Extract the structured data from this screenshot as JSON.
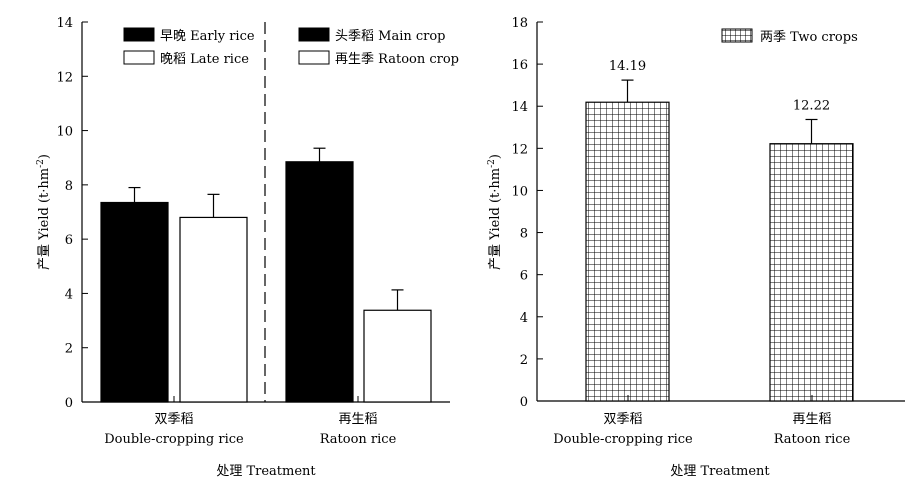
{
  "chart_data": [
    {
      "type": "bar",
      "xlabel": "处理 Treatment",
      "ylabel_prefix": "产量 Yield (t·hm",
      "ylabel_sup": "-2",
      "ylabel_suffix": ")",
      "ylim": [
        0,
        14
      ],
      "yticks": [
        "0",
        "2",
        "4",
        "6",
        "8",
        "10",
        "12",
        "14"
      ],
      "grid": false,
      "legend_position": "top",
      "groups": [
        {
          "label_cn": "双季稻",
          "label_en": "Double-cropping rice"
        },
        {
          "label_cn": "再生稻",
          "label_en": "Ratoon rice"
        }
      ],
      "series": [
        {
          "name": "早晚 Early rice",
          "fill": "#000000",
          "group": 0,
          "value": 7.35,
          "error": 0.55
        },
        {
          "name": "晚稻 Late rice",
          "fill": "#ffffff",
          "group": 0,
          "value": 6.8,
          "error": 0.85
        },
        {
          "name": "头季稻 Main crop",
          "fill": "#000000",
          "group": 1,
          "value": 8.85,
          "error": 0.5
        },
        {
          "name": "再生季 Ratoon crop",
          "fill": "#ffffff",
          "group": 1,
          "value": 3.38,
          "error": 0.75
        }
      ]
    },
    {
      "type": "bar",
      "xlabel": "处理 Treatment",
      "ylabel_prefix": "产量 Yield (t·hm",
      "ylabel_sup": "-2",
      "ylabel_suffix": ")",
      "ylim": [
        0,
        18
      ],
      "yticks": [
        "0",
        "2",
        "4",
        "6",
        "8",
        "10",
        "12",
        "14",
        "16",
        "18"
      ],
      "grid": false,
      "legend_position": "top-right",
      "categories": [
        {
          "label_cn": "双季稻",
          "label_en": "Double-cropping rice"
        },
        {
          "label_cn": "再生稻",
          "label_en": "Ratoon rice"
        }
      ],
      "series": [
        {
          "name": "两季 Two crops",
          "fill": "grid-pattern",
          "values": [
            14.19,
            12.22
          ],
          "errors": [
            1.05,
            1.15
          ],
          "data_labels": [
            "14.19",
            "12.22"
          ]
        }
      ]
    }
  ]
}
